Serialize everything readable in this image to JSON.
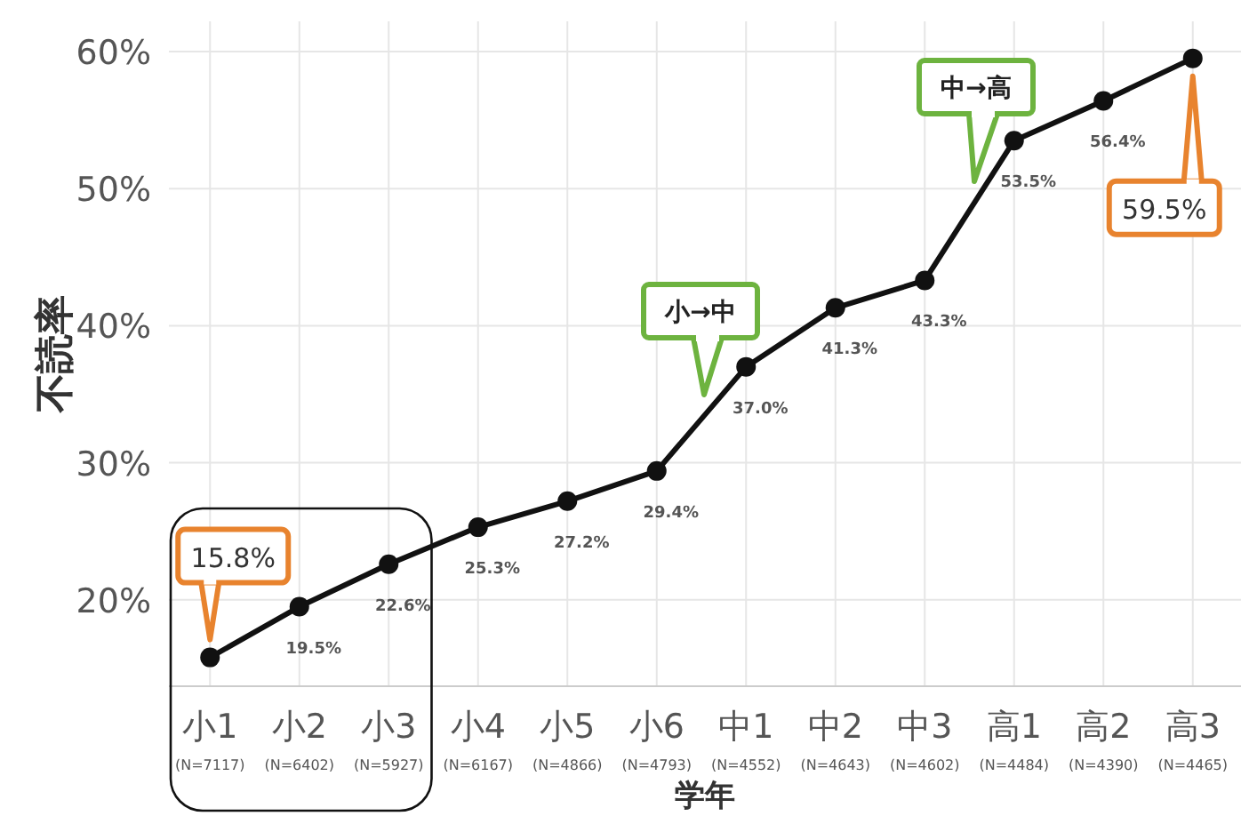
{
  "chart_data": {
    "type": "line",
    "xlabel": "学年",
    "ylabel": "不読率",
    "categories": [
      "小1$_{(N=7117)}$",
      "小2$_{(N=6402)}$",
      "小3$_{(N=5927)}$",
      "小4$_{(N=6167)}$",
      "小5$_{(N=4866)}$",
      "小6$_{(N=4793)}$",
      "中1$_{(N=4552)}$",
      "中2$_{(N=4643)}$",
      "中3$_{(N=4602)}$",
      "高1$_{(N=4484)}$",
      "高2$_{(N=4390)}$",
      "高3$_{(N=4465)}$"
    ],
    "series": [
      {
        "color": "#111111",
        "values": [
          15.8,
          19.5,
          22.6,
          25.3,
          27.2,
          29.4,
          37.0,
          41.3,
          43.3,
          53.5,
          56.4,
          59.5
        ],
        "value_labels": [
          "15.8%",
          "19.5%",
          "22.6%",
          "25.3%",
          "27.2%",
          "29.4%",
          "37.0%",
          "41.3%",
          "43.3%",
          "53.5%",
          "56.4%",
          "59.5%"
        ]
      }
    ],
    "ylim": [
      13.7,
      62.2
    ],
    "yticks": [
      {
        "value": 20,
        "label": "20%"
      },
      {
        "value": 30,
        "label": "30%"
      },
      {
        "value": 40,
        "label": "40%"
      },
      {
        "value": 50,
        "label": "50%"
      },
      {
        "value": 60,
        "label": "60%"
      }
    ],
    "grid": true,
    "marker": "circle",
    "line_style": "solid",
    "annotations": [
      "小→中",
      "中→高"
    ]
  }
}
